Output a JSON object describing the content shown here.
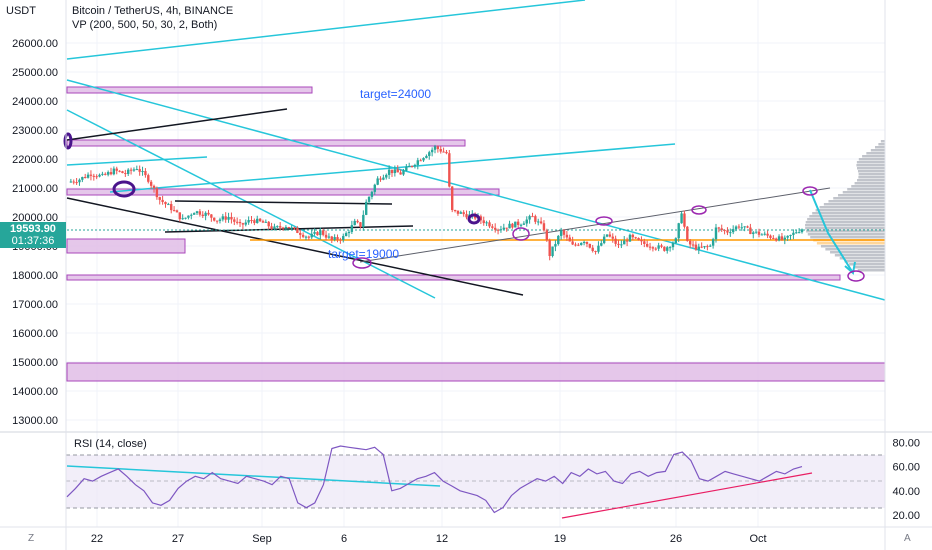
{
  "header": {
    "currency": "USDT",
    "title": "Bitcoin / TetherUS, 4h, BINANCE",
    "indicator": "VP (200, 500, 50, 30, 2, Both)",
    "last_price": "19593.90",
    "countdown": "01:37:36"
  },
  "chart_data": [
    {
      "type": "candlestick",
      "title": "Bitcoin / TetherUS, 4h, BINANCE",
      "ylabel": "USDT",
      "ylim": [
        12500,
        27000
      ],
      "yticks": [
        "13000.00",
        "14000.00",
        "15000.00",
        "16000.00",
        "17000.00",
        "18000.00",
        "19000.00",
        "20000.00",
        "21000.00",
        "22000.00",
        "23000.00",
        "24000.00",
        "25000.00",
        "26000.00"
      ],
      "xticks": [
        "22",
        "27",
        "Sep",
        "6",
        "12",
        "19",
        "26",
        "Oct"
      ],
      "annotations": [
        "target=24000",
        "target=19000"
      ],
      "price_path": [
        [
          0,
          21200
        ],
        [
          4,
          21300
        ],
        [
          8,
          21500
        ],
        [
          12,
          21400
        ],
        [
          16,
          21600
        ],
        [
          20,
          21500
        ],
        [
          24,
          21700
        ],
        [
          28,
          21300
        ],
        [
          32,
          20600
        ],
        [
          36,
          20300
        ],
        [
          40,
          19900
        ],
        [
          44,
          20200
        ],
        [
          48,
          20100
        ],
        [
          52,
          19900
        ],
        [
          56,
          20000
        ],
        [
          60,
          19700
        ],
        [
          64,
          19900
        ],
        [
          68,
          19800
        ],
        [
          72,
          19600
        ],
        [
          76,
          19700
        ],
        [
          80,
          19500
        ],
        [
          84,
          19300
        ],
        [
          88,
          19500
        ],
        [
          92,
          19200
        ],
        [
          96,
          19300
        ],
        [
          100,
          19800
        ],
        [
          102,
          19700
        ],
        [
          104,
          20500
        ],
        [
          106,
          20900
        ],
        [
          108,
          21300
        ],
        [
          112,
          21600
        ],
        [
          116,
          21500
        ],
        [
          120,
          21800
        ],
        [
          124,
          22100
        ],
        [
          128,
          22400
        ],
        [
          132,
          22200
        ],
        [
          133,
          21000
        ],
        [
          134,
          20200
        ],
        [
          138,
          20100
        ],
        [
          142,
          20000
        ],
        [
          146,
          19800
        ],
        [
          150,
          19600
        ],
        [
          154,
          19700
        ],
        [
          158,
          19800
        ],
        [
          162,
          20000
        ],
        [
          166,
          19600
        ],
        [
          168,
          18700
        ],
        [
          172,
          19500
        ],
        [
          176,
          19000
        ],
        [
          180,
          19200
        ],
        [
          184,
          18800
        ],
        [
          188,
          19400
        ],
        [
          192,
          19000
        ],
        [
          196,
          19300
        ],
        [
          200,
          19100
        ],
        [
          204,
          19000
        ],
        [
          208,
          18900
        ],
        [
          212,
          19200
        ],
        [
          214,
          20200
        ],
        [
          216,
          19100
        ],
        [
          220,
          18900
        ],
        [
          224,
          19000
        ],
        [
          226,
          19600
        ],
        [
          230,
          19500
        ],
        [
          234,
          19700
        ],
        [
          238,
          19500
        ],
        [
          242,
          19400
        ],
        [
          246,
          19300
        ],
        [
          250,
          19200
        ],
        [
          254,
          19500
        ],
        [
          256,
          19600
        ]
      ]
    },
    {
      "type": "line",
      "title": "RSI (14, close)",
      "ylim": [
        15,
        82
      ],
      "yticks": [
        "20.00",
        "40.00",
        "60.00",
        "80.00"
      ],
      "series": [
        {
          "values": [
            35,
            42,
            50,
            48,
            52,
            55,
            58,
            52,
            45,
            40,
            30,
            28,
            32,
            42,
            48,
            52,
            50,
            55,
            50,
            48,
            46,
            52,
            50,
            48,
            45,
            52,
            50,
            30,
            26,
            30,
            45,
            75,
            77,
            76,
            75,
            74,
            76,
            70,
            40,
            42,
            46,
            50,
            52,
            55,
            48,
            44,
            40,
            38,
            36,
            32,
            22,
            26,
            36,
            42,
            46,
            50,
            48,
            52,
            46,
            55,
            52,
            58,
            54,
            56,
            48,
            46,
            54,
            56,
            52,
            55,
            56,
            70,
            72,
            65,
            50,
            48,
            52,
            56,
            54,
            52,
            50,
            48,
            52,
            56,
            54,
            58,
            60
          ]
        }
      ]
    }
  ]
}
